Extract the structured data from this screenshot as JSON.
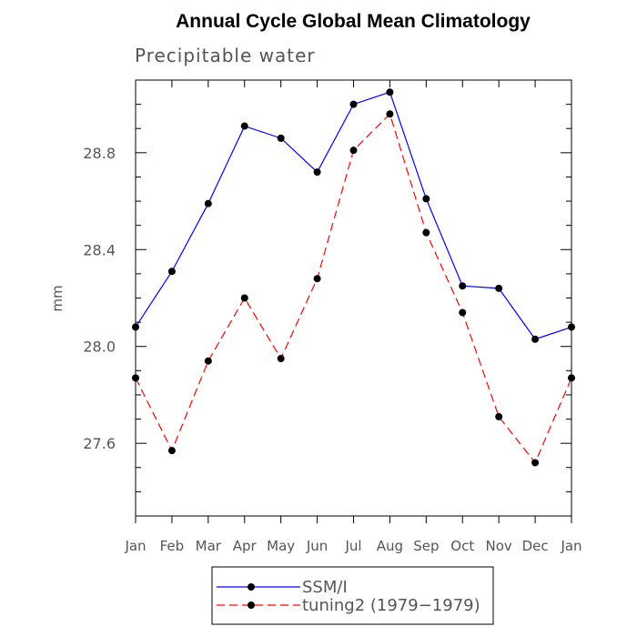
{
  "chart_data": {
    "type": "line",
    "title": "Annual Cycle Global Mean Climatology",
    "subtitle": "Precipitable water",
    "ylabel": "mm",
    "xlabel": "",
    "categories": [
      "Jan",
      "Feb",
      "Mar",
      "Apr",
      "May",
      "Jun",
      "Jul",
      "Aug",
      "Sep",
      "Oct",
      "Nov",
      "Dec",
      "Jan"
    ],
    "ylim": [
      27.3,
      29.1
    ],
    "yticks": [
      27.6,
      28.0,
      28.4,
      28.8
    ],
    "ytick_labels": [
      "27.6",
      "28.0",
      "28.4",
      "28.8"
    ],
    "series": [
      {
        "name": "SSM/I",
        "color": "#0000ff",
        "dash": "solid",
        "values": [
          28.08,
          28.31,
          28.59,
          28.91,
          28.86,
          28.72,
          29.0,
          29.05,
          28.61,
          28.25,
          28.24,
          28.03,
          28.08
        ]
      },
      {
        "name": "tuning2 (1979−1979)",
        "color": "#ff0000",
        "dash": "dashed",
        "values": [
          27.87,
          27.57,
          27.94,
          28.2,
          27.95,
          28.28,
          28.81,
          28.96,
          28.47,
          28.14,
          27.71,
          27.52,
          27.87
        ]
      }
    ],
    "legend_position": "bottom-center",
    "grid": false
  }
}
